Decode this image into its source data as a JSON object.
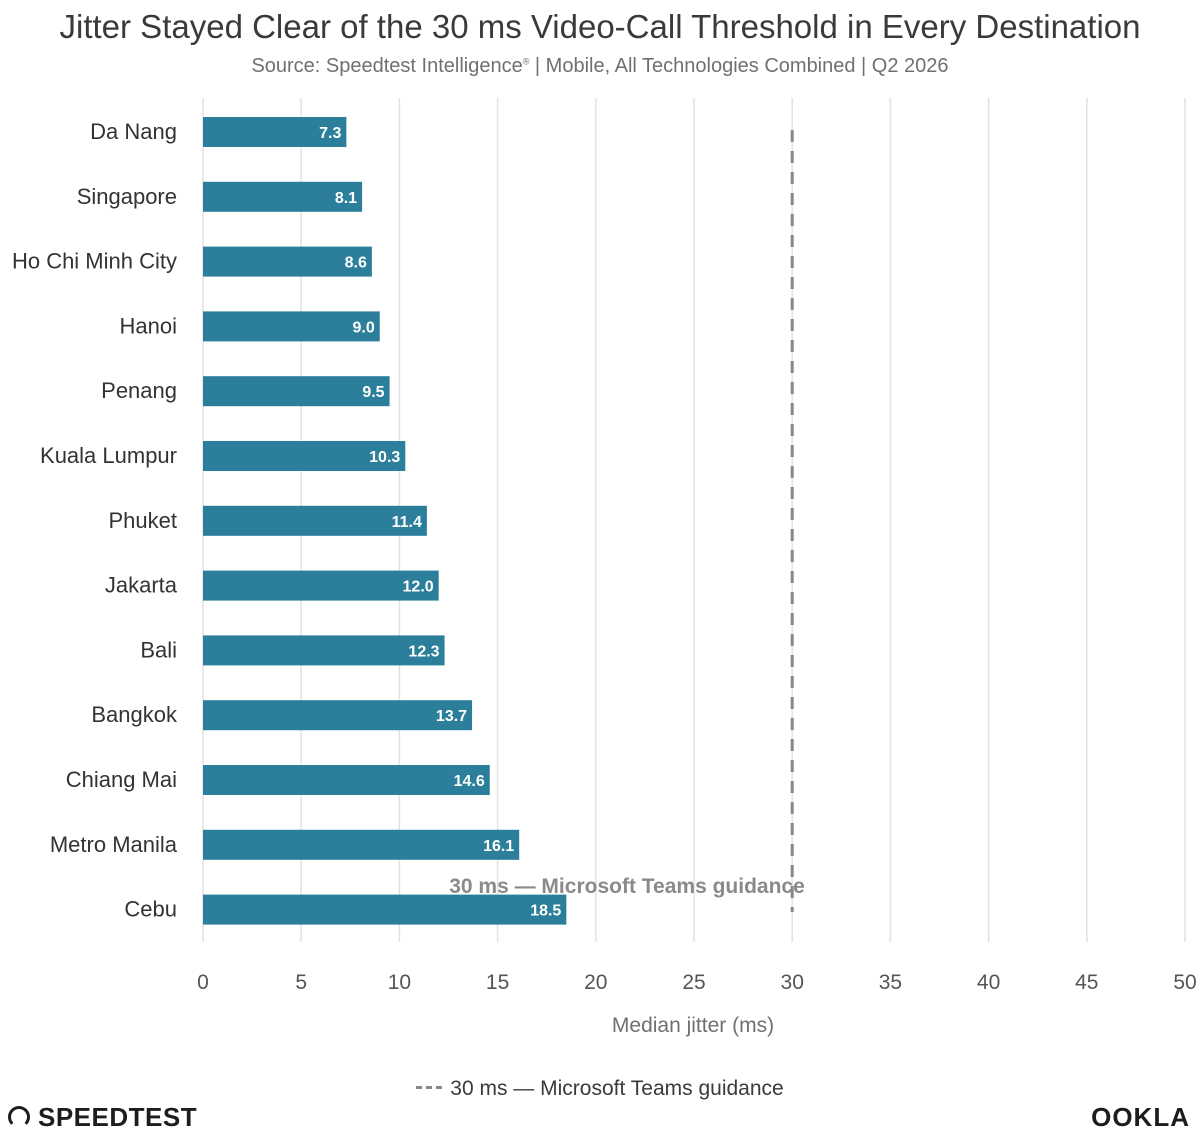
{
  "header": {
    "title": "Jitter Stayed Clear of the 30 ms Video-Call Threshold in Every Destination",
    "subtitle_main": "Source: Speedtest Intelligence",
    "subtitle_mark": "®",
    "subtitle_rest": " | Mobile, All Technologies Combined | Q2 2026"
  },
  "legend": {
    "label": "30 ms — Microsoft Teams guidance"
  },
  "branding": {
    "left": "SPEEDTEST",
    "right": "OOKLA"
  },
  "colors": {
    "bar": "#2b7f9b",
    "grid": "#e2e2e2",
    "reference": "#888888"
  },
  "chart_data": {
    "type": "bar",
    "orientation": "horizontal",
    "categories": [
      "Da Nang",
      "Singapore",
      "Ho Chi Minh City",
      "Hanoi",
      "Penang",
      "Kuala Lumpur",
      "Phuket",
      "Jakarta",
      "Bali",
      "Bangkok",
      "Chiang Mai",
      "Metro Manila",
      "Cebu"
    ],
    "values": [
      7.3,
      8.1,
      8.6,
      9.0,
      9.5,
      10.3,
      11.4,
      12.0,
      12.3,
      13.7,
      14.6,
      16.1,
      18.5
    ],
    "value_labels": [
      "7.3",
      "8.1",
      "8.6",
      "9.0",
      "9.5",
      "10.3",
      "11.4",
      "12.0",
      "12.3",
      "13.7",
      "14.6",
      "16.1",
      "18.5"
    ],
    "xlabel": "Median jitter (ms)",
    "ylabel": "",
    "xlim": [
      0,
      50
    ],
    "xticks": [
      0,
      5,
      10,
      15,
      20,
      25,
      30,
      35,
      40,
      45,
      50
    ],
    "grid": true,
    "legend_position": "bottom",
    "reference_line": {
      "value": 30,
      "label": "30 ms — Microsoft Teams guidance",
      "style": "dashed"
    }
  }
}
